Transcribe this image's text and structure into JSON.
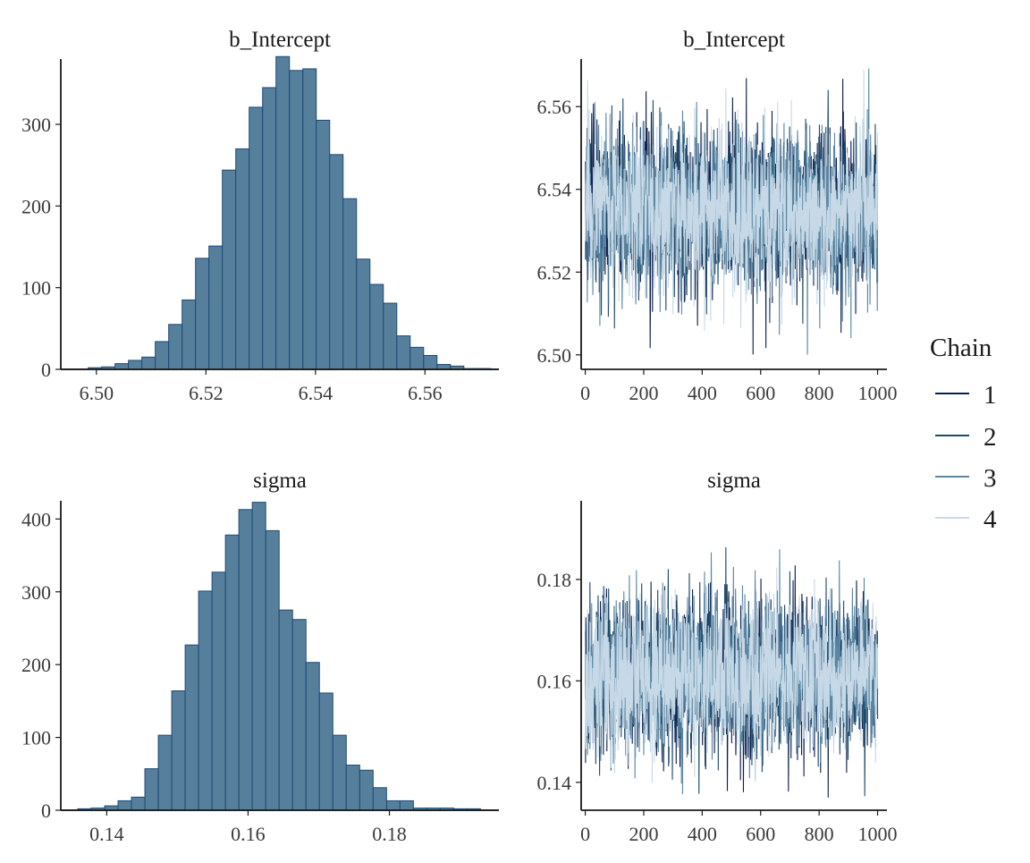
{
  "chart_data": [
    {
      "type": "bar",
      "title": "b_Intercept",
      "xlim": [
        6.4935,
        6.5735
      ],
      "ylim": [
        0,
        380
      ],
      "x_ticks": [
        6.5,
        6.52,
        6.54,
        6.56
      ],
      "x_tick_labels": [
        "6.50",
        "6.52",
        "6.54",
        "6.56"
      ],
      "y_ticks": [
        0,
        100,
        200,
        300
      ],
      "y_tick_labels": [
        "0",
        "100",
        "200",
        "300"
      ],
      "bin_start": 6.4985,
      "bin_width": 0.00245,
      "values": [
        2,
        3,
        7,
        11,
        15,
        34,
        55,
        85,
        136,
        151,
        244,
        270,
        321,
        345,
        383,
        366,
        368,
        305,
        263,
        209,
        135,
        104,
        81,
        41,
        27,
        17,
        6,
        4,
        1,
        1
      ],
      "fill": "#557f9a",
      "stroke": "#204a78"
    },
    {
      "type": "line",
      "title": "b_Intercept",
      "xlim": [
        -14,
        1032
      ],
      "ylim": [
        6.4965,
        6.5715
      ],
      "x_ticks": [
        0,
        200,
        400,
        600,
        800,
        1000
      ],
      "x_tick_labels": [
        "0",
        "200",
        "400",
        "600",
        "800",
        "1000"
      ],
      "y_ticks": [
        6.5,
        6.52,
        6.54,
        6.56
      ],
      "y_tick_labels": [
        "6.50",
        "6.52",
        "6.54",
        "6.56"
      ],
      "n_iter": 1000,
      "center": 6.535,
      "spread": 0.0095,
      "extremes": [
        6.4998,
        6.5695
      ]
    },
    {
      "type": "bar",
      "title": "sigma",
      "xlim": [
        0.1335,
        0.1955
      ],
      "ylim": [
        0,
        425
      ],
      "x_ticks": [
        0.14,
        0.16,
        0.18
      ],
      "x_tick_labels": [
        "0.14",
        "0.16",
        "0.18"
      ],
      "y_ticks": [
        0,
        100,
        200,
        300,
        400
      ],
      "y_tick_labels": [
        "0",
        "100",
        "200",
        "300",
        "400"
      ],
      "bin_start": 0.1359,
      "bin_width": 0.0019,
      "values": [
        2,
        3,
        6,
        13,
        18,
        57,
        103,
        164,
        227,
        301,
        327,
        378,
        413,
        423,
        384,
        275,
        262,
        203,
        161,
        103,
        62,
        55,
        31,
        13,
        13,
        3,
        3,
        3,
        2,
        2
      ],
      "fill": "#557f9a",
      "stroke": "#204a78"
    },
    {
      "type": "line",
      "title": "sigma",
      "xlim": [
        -14,
        1032
      ],
      "ylim": [
        0.1345,
        0.1955
      ],
      "x_ticks": [
        0,
        200,
        400,
        600,
        800,
        1000
      ],
      "x_tick_labels": [
        "0",
        "200",
        "400",
        "600",
        "800",
        "1000"
      ],
      "y_ticks": [
        0.14,
        0.16,
        0.18
      ],
      "y_tick_labels": [
        "0.14",
        "0.16",
        "0.18"
      ],
      "n_iter": 1000,
      "center": 0.161,
      "spread": 0.0075,
      "extremes": [
        0.137,
        0.193
      ]
    }
  ],
  "legend": {
    "title": "Chain",
    "items": [
      {
        "label": "1",
        "color": "#0e1f4d"
      },
      {
        "label": "2",
        "color": "#1f4a6c"
      },
      {
        "label": "3",
        "color": "#5a87a3"
      },
      {
        "label": "4",
        "color": "#c7d9e7"
      }
    ]
  }
}
